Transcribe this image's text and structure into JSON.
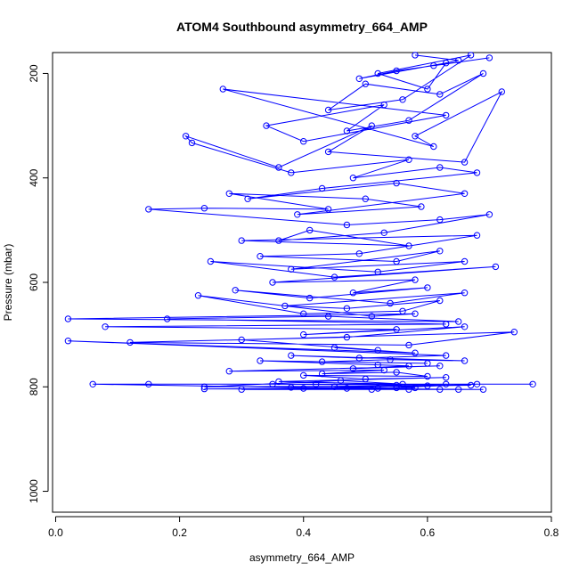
{
  "chart_data": {
    "type": "line",
    "title": "ATOM4 Southbound asymmetry_664_AMP",
    "xlabel": "asymmetry_664_AMP",
    "ylabel": "Pressure (mbar)",
    "xlim": [
      -0.005,
      0.8
    ],
    "ylim": [
      1040,
      160
    ],
    "y_axis_reversed": true,
    "x_ticks": [
      0.0,
      0.2,
      0.4,
      0.6,
      0.8
    ],
    "x_tick_labels": [
      "0.0",
      "0.2",
      "0.4",
      "0.6",
      "0.8"
    ],
    "y_ticks": [
      200,
      400,
      600,
      800,
      1000
    ],
    "y_tick_labels": [
      "200",
      "400",
      "600",
      "800",
      "1000"
    ],
    "grid": false,
    "legend": false,
    "marker": "open-circle",
    "series": [
      {
        "color": "#0000ff",
        "x": [
          0.58,
          0.65,
          0.61,
          0.7,
          0.55,
          0.49,
          0.63,
          0.6,
          0.52,
          0.67,
          0.56,
          0.44,
          0.5,
          0.62,
          0.69,
          0.57,
          0.47,
          0.53,
          0.34,
          0.4,
          0.63,
          0.27,
          0.61,
          0.58,
          0.72,
          0.66,
          0.44,
          0.51,
          0.36,
          0.21,
          0.22,
          0.38,
          0.57,
          0.48,
          0.62,
          0.68,
          0.43,
          0.31,
          0.55,
          0.66,
          0.39,
          0.59,
          0.5,
          0.28,
          0.44,
          0.24,
          0.15,
          0.47,
          0.62,
          0.7,
          0.53,
          0.36,
          0.41,
          0.57,
          0.3,
          0.68,
          0.49,
          0.33,
          0.55,
          0.62,
          0.38,
          0.66,
          0.52,
          0.25,
          0.45,
          0.71,
          0.35,
          0.58,
          0.48,
          0.6,
          0.41,
          0.29,
          0.54,
          0.66,
          0.37,
          0.47,
          0.62,
          0.56,
          0.4,
          0.23,
          0.51,
          0.58,
          0.02,
          0.65,
          0.44,
          0.18,
          0.63,
          0.08,
          0.55,
          0.4,
          0.66,
          0.47,
          0.12,
          0.57,
          0.74,
          0.3,
          0.52,
          0.45,
          0.58,
          0.02,
          0.63,
          0.49,
          0.38,
          0.66,
          0.54,
          0.43,
          0.6,
          0.33,
          0.52,
          0.57,
          0.48,
          0.62,
          0.28,
          0.53,
          0.43,
          0.55,
          0.6,
          0.4,
          0.5,
          0.63,
          0.36,
          0.56,
          0.46,
          0.24,
          0.6,
          0.52,
          0.68,
          0.42,
          0.55,
          0.58,
          0.38,
          0.65,
          0.47,
          0.06,
          0.77,
          0.15,
          0.63,
          0.35,
          0.67,
          0.45,
          0.55,
          0.24,
          0.62,
          0.4,
          0.69,
          0.57,
          0.51,
          0.3
        ],
        "y": [
          165,
          175,
          185,
          170,
          195,
          210,
          180,
          230,
          200,
          165,
          250,
          270,
          220,
          240,
          200,
          290,
          310,
          260,
          300,
          330,
          280,
          230,
          340,
          320,
          235,
          370,
          350,
          300,
          380,
          320,
          333,
          390,
          365,
          400,
          380,
          390,
          420,
          440,
          410,
          430,
          470,
          455,
          440,
          430,
          460,
          458,
          460,
          490,
          480,
          470,
          505,
          520,
          500,
          530,
          520,
          510,
          545,
          550,
          560,
          540,
          575,
          560,
          580,
          560,
          590,
          570,
          600,
          595,
          620,
          610,
          630,
          615,
          640,
          620,
          645,
          650,
          635,
          655,
          660,
          625,
          665,
          660,
          670,
          675,
          665,
          670,
          680,
          685,
          690,
          700,
          685,
          705,
          715,
          720,
          695,
          710,
          730,
          725,
          735,
          712,
          740,
          745,
          740,
          750,
          748,
          752,
          755,
          750,
          758,
          760,
          765,
          760,
          770,
          768,
          775,
          772,
          780,
          778,
          785,
          782,
          790,
          795,
          788,
          800,
          798,
          803,
          795,
          795,
          797,
          802,
          801,
          805,
          803,
          795,
          795,
          795,
          795,
          795,
          797,
          800,
          802,
          804,
          805,
          803,
          805,
          805,
          805,
          805
        ]
      }
    ]
  }
}
